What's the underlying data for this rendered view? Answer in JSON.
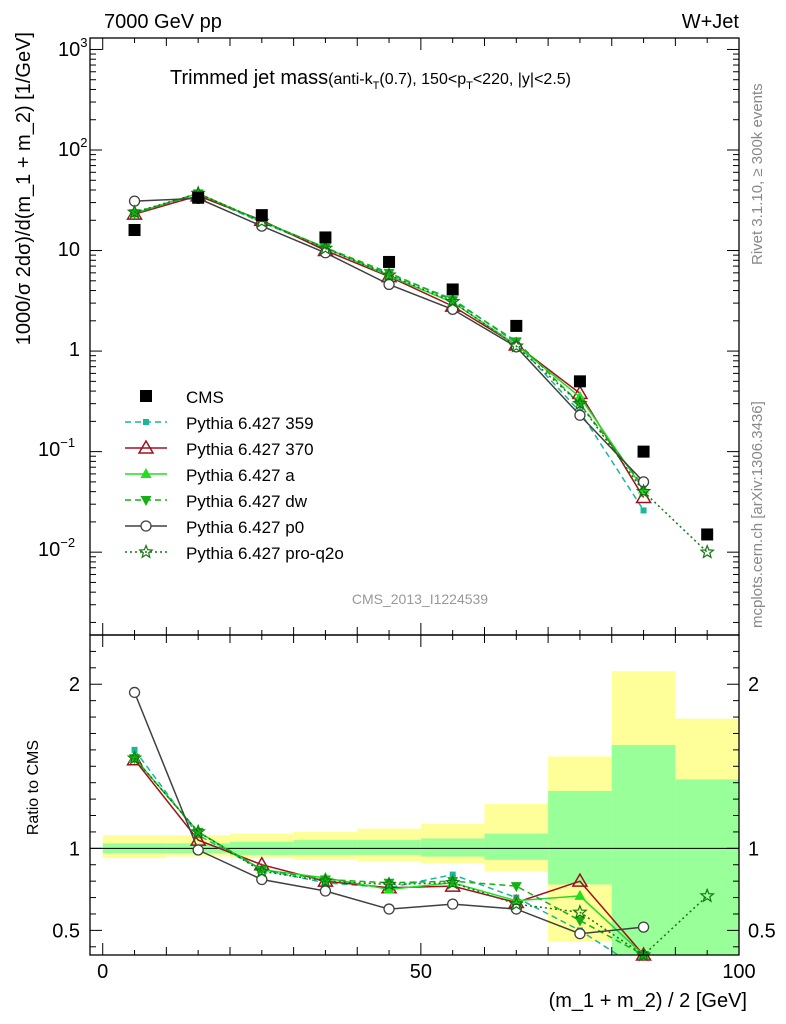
{
  "header": {
    "left": "7000 GeV pp",
    "right": "W+Jet",
    "side_top": "Rivet 3.1.10, ≥ 300k events",
    "side_bottom": "mcplots.cern.ch [arXiv:1306.3436]",
    "watermark": "CMS_2013_I1224539"
  },
  "title": {
    "main": "Trimmed jet mass",
    "p1": "(anti-k",
    "p1sub": "T",
    "p2": "(0.7), 150<p",
    "p2sub": "T",
    "p3": "<220, |y|<2.5)"
  },
  "colors": {
    "data": "#000000",
    "band_inner": "#99ff99",
    "band_outer": "#ffff99"
  },
  "chart_data": [
    {
      "type": "line",
      "panel": "main",
      "ylabel": "1000/σ 2dσ)/d(m_1 + m_2) [1/GeV]",
      "yscale": "log",
      "xlim": [
        -2,
        100
      ],
      "ylim": [
        0.0015,
        1300
      ],
      "ytick_labels": {
        "major": [
          "10−2",
          "10−1",
          "1",
          "10",
          "10²",
          "10³"
        ],
        "minus": "−2",
        "m1": "−1",
        "two": "2",
        "three": "3",
        "one": "1",
        "ten": "10"
      },
      "x": [
        5,
        15,
        25,
        35,
        45,
        55,
        65,
        75,
        85,
        95
      ],
      "legend_position": "middle-left",
      "series": [
        {
          "name": "CMS",
          "color": "#000000",
          "marker": "square",
          "dash": "",
          "values": [
            16,
            33.5,
            22.5,
            13.5,
            7.7,
            4.1,
            1.78,
            0.5,
            0.1,
            0.015
          ]
        },
        {
          "name": "Pythia 6.427 359",
          "color": "#18b898",
          "marker": "smallsquare",
          "dash": "6,4",
          "values": [
            24,
            36,
            19,
            10.5,
            5.8,
            3.3,
            1.2,
            0.25,
            0.026,
            null
          ]
        },
        {
          "name": "Pythia 6.427 370",
          "color": "#a01020",
          "marker": "opentriangle",
          "dash": "",
          "values": [
            23,
            35,
            20,
            10,
            5.5,
            2.8,
            1.15,
            0.38,
            0.035,
            null
          ]
        },
        {
          "name": "Pythia 6.427 a",
          "color": "#22dd22",
          "marker": "triangle",
          "dash": "",
          "values": [
            23.5,
            37,
            19.5,
            10.7,
            5.6,
            3.05,
            1.15,
            0.35,
            0.042,
            null
          ]
        },
        {
          "name": "Pythia 6.427 dw",
          "color": "#16b016",
          "marker": "downtriangle",
          "dash": "6,4",
          "values": [
            23.5,
            37,
            19.5,
            10.7,
            6.0,
            3.2,
            1.25,
            0.3,
            0.045,
            null
          ]
        },
        {
          "name": "Pythia 6.427 p0",
          "color": "#404040",
          "marker": "opencircle",
          "dash": "",
          "values": [
            31,
            33,
            17.5,
            9.5,
            4.6,
            2.6,
            1.1,
            0.23,
            0.05,
            null
          ]
        },
        {
          "name": "Pythia 6.427 pro-q2o",
          "color": "#107810",
          "marker": "star",
          "dash": "2,3",
          "values": [
            24,
            37,
            19.5,
            10.5,
            5.7,
            3.1,
            1.12,
            0.3,
            0.04,
            0.01
          ]
        }
      ]
    },
    {
      "type": "line",
      "panel": "ratio",
      "ylabel": "Ratio to CMS",
      "xlabel": "(m_1 + m_2) / 2 [GeV]",
      "xlim": [
        -2,
        100
      ],
      "ylim": [
        0.35,
        2.3
      ],
      "xticks": [
        0,
        50,
        100
      ],
      "yticks": [
        0.5,
        1,
        2
      ],
      "x": [
        5,
        15,
        25,
        35,
        45,
        55,
        65,
        75,
        85,
        95
      ],
      "band_bins": [
        [
          0,
          10
        ],
        [
          10,
          20
        ],
        [
          20,
          30
        ],
        [
          30,
          40
        ],
        [
          40,
          50
        ],
        [
          50,
          60
        ],
        [
          60,
          70
        ],
        [
          70,
          80
        ],
        [
          80,
          90
        ],
        [
          90,
          100
        ]
      ],
      "band_inner": [
        [
          0.97,
          1.03
        ],
        [
          0.97,
          1.03
        ],
        [
          0.96,
          1.04
        ],
        [
          0.96,
          1.05
        ],
        [
          0.96,
          1.05
        ],
        [
          0.95,
          1.06
        ],
        [
          0.93,
          1.09
        ],
        [
          0.78,
          1.35
        ],
        [
          0.3,
          1.63
        ],
        [
          0.3,
          1.42
        ]
      ],
      "band_outer": [
        [
          0.94,
          1.08
        ],
        [
          0.95,
          1.08
        ],
        [
          0.94,
          1.09
        ],
        [
          0.93,
          1.1
        ],
        [
          0.92,
          1.12
        ],
        [
          0.91,
          1.15
        ],
        [
          0.86,
          1.27
        ],
        [
          0.43,
          1.56
        ],
        [
          0.3,
          2.08
        ],
        [
          0.3,
          1.79
        ]
      ],
      "series": [
        {
          "name": "Pythia 6.427 359",
          "values": [
            1.6,
            1.08,
            0.87,
            0.79,
            0.76,
            0.84,
            0.7,
            0.5,
            0.25,
            null
          ]
        },
        {
          "name": "Pythia 6.427 370",
          "values": [
            1.54,
            1.05,
            0.9,
            0.8,
            0.76,
            0.77,
            0.67,
            0.8,
            0.35,
            null
          ]
        },
        {
          "name": "Pythia 6.427 a",
          "values": [
            1.55,
            1.1,
            0.87,
            0.82,
            0.75,
            0.79,
            0.68,
            0.71,
            0.35,
            null
          ]
        },
        {
          "name": "Pythia 6.427 dw",
          "values": [
            1.55,
            1.1,
            0.87,
            0.81,
            0.79,
            0.8,
            0.77,
            0.56,
            0.35,
            null
          ]
        },
        {
          "name": "Pythia 6.427 p0",
          "values": [
            1.95,
            0.99,
            0.81,
            0.74,
            0.63,
            0.66,
            0.63,
            0.48,
            0.52,
            null
          ]
        },
        {
          "name": "Pythia 6.427 pro-q2o",
          "values": [
            1.55,
            1.1,
            0.86,
            0.8,
            0.78,
            0.79,
            0.66,
            0.61,
            0.35,
            0.71
          ]
        }
      ]
    }
  ]
}
